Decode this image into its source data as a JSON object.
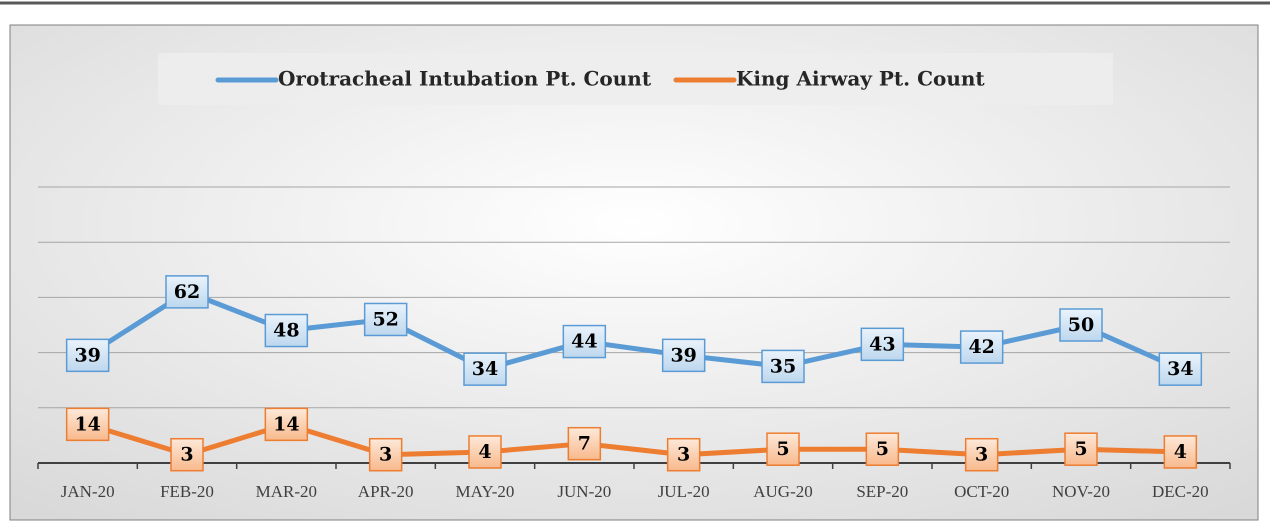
{
  "chart_data": {
    "type": "line",
    "categories": [
      "JAN-20",
      "FEB-20",
      "MAR-20",
      "APR-20",
      "MAY-20",
      "JUN-20",
      "JUL-20",
      "AUG-20",
      "SEP-20",
      "OCT-20",
      "NOV-20",
      "DEC-20"
    ],
    "series": [
      {
        "name": "Orotracheal Intubation Pt. Count",
        "color": "#5b9bd5",
        "values": [
          39,
          62,
          48,
          52,
          34,
          44,
          39,
          35,
          43,
          42,
          50,
          34
        ]
      },
      {
        "name": "King Airway Pt. Count",
        "color": "#ed7d31",
        "values": [
          14,
          3,
          14,
          3,
          4,
          7,
          3,
          5,
          5,
          3,
          5,
          4
        ]
      }
    ],
    "ylim": [
      0,
      100
    ],
    "yticks": [
      0,
      20,
      40,
      60,
      80,
      100
    ],
    "grid": true,
    "legend": "top"
  }
}
